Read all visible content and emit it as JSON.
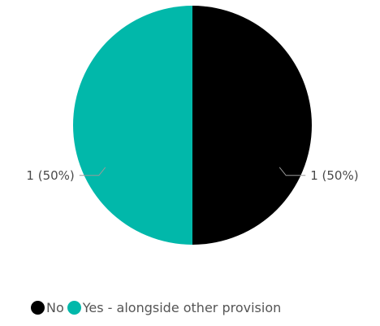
{
  "chart_data": {
    "type": "pie",
    "categories": [
      "No",
      "Yes - alongside other provision"
    ],
    "values": [
      1,
      1
    ],
    "data_labels": [
      "1 (50%)",
      "1 (50%)"
    ],
    "colors": [
      "#000000",
      "#01B8AA"
    ],
    "legend_position": "bottom"
  },
  "legend": {
    "items": [
      {
        "label": "No",
        "color": "#000000"
      },
      {
        "label": "Yes - alongside other provision",
        "color": "#01B8AA"
      }
    ]
  }
}
